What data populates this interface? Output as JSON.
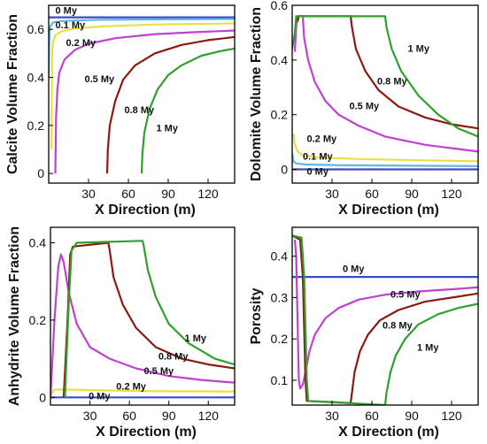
{
  "chart_data": [
    {
      "type": "line",
      "ylabel": "Calcite Volume Fraction",
      "xlabel": "X Direction (m)",
      "xlim": [
        0,
        140
      ],
      "ylim": [
        -0.04,
        0.7
      ],
      "xticks": [
        "30",
        "60",
        "90",
        "120"
      ],
      "xtick_values": [
        30,
        60,
        90,
        120
      ],
      "yticks": [
        "0",
        "0.2",
        "0.4",
        "0.6"
      ],
      "ytick_values": [
        0,
        0.2,
        0.4,
        0.6
      ],
      "series": [
        {
          "name": "0 My",
          "color": "#3b4cc0",
          "points": [
            [
              0,
              0.65
            ],
            [
              140,
              0.65
            ]
          ]
        },
        {
          "name": "0.1 My",
          "color": "#5fb7e8",
          "points": [
            [
              0,
              0.4
            ],
            [
              0.5,
              0.58
            ],
            [
              1,
              0.61
            ],
            [
              3,
              0.628
            ],
            [
              10,
              0.635
            ],
            [
              40,
              0.64
            ],
            [
              140,
              0.643
            ]
          ]
        },
        {
          "name": "0.2 My",
          "color": "#e8e040",
          "points": [
            [
              2,
              0.1
            ],
            [
              2.5,
              0.47
            ],
            [
              3,
              0.54
            ],
            [
              5,
              0.575
            ],
            [
              10,
              0.593
            ],
            [
              20,
              0.603
            ],
            [
              40,
              0.612
            ],
            [
              80,
              0.62
            ],
            [
              140,
              0.625
            ]
          ]
        },
        {
          "name": "0.5 My",
          "color": "#c040d0",
          "points": [
            [
              5,
              0.0
            ],
            [
              5.5,
              0.23
            ],
            [
              6.5,
              0.35
            ],
            [
              8,
              0.42
            ],
            [
              12,
              0.475
            ],
            [
              20,
              0.515
            ],
            [
              30,
              0.54
            ],
            [
              50,
              0.563
            ],
            [
              80,
              0.58
            ],
            [
              110,
              0.588
            ],
            [
              140,
              0.595
            ]
          ]
        },
        {
          "name": "0.8 My",
          "color": "#8b1a10",
          "points": [
            [
              44,
              0.0
            ],
            [
              44.5,
              0.1
            ],
            [
              46,
              0.2
            ],
            [
              50,
              0.3
            ],
            [
              56,
              0.39
            ],
            [
              65,
              0.45
            ],
            [
              80,
              0.5
            ],
            [
              100,
              0.535
            ],
            [
              120,
              0.555
            ],
            [
              140,
              0.568
            ]
          ]
        },
        {
          "name": "1 My",
          "color": "#2ea02e",
          "points": [
            [
              70,
              0.0
            ],
            [
              70.5,
              0.08
            ],
            [
              72,
              0.17
            ],
            [
              76,
              0.27
            ],
            [
              82,
              0.35
            ],
            [
              90,
              0.41
            ],
            [
              100,
              0.45
            ],
            [
              115,
              0.49
            ],
            [
              130,
              0.51
            ],
            [
              140,
              0.52
            ]
          ]
        }
      ],
      "annotations": [
        {
          "text": "0 My",
          "x": 5,
          "y": 0.665
        },
        {
          "text": "0.1 My",
          "x": 5,
          "y": 0.605
        },
        {
          "text": "0.2 My",
          "x": 13,
          "y": 0.53
        },
        {
          "text": "0.5 My",
          "x": 27,
          "y": 0.38
        },
        {
          "text": "0.8 My",
          "x": 57,
          "y": 0.25
        },
        {
          "text": "1 My",
          "x": 81,
          "y": 0.175
        }
      ]
    },
    {
      "type": "line",
      "ylabel": "Dolomite Volume Fraction",
      "xlabel": "X Direction (m)",
      "xlim": [
        0,
        140
      ],
      "ylim": [
        -0.05,
        0.6
      ],
      "xticks": [
        "30",
        "60",
        "90",
        "120"
      ],
      "xtick_values": [
        30,
        60,
        90,
        120
      ],
      "yticks": [
        "0",
        "0.2",
        "0.4",
        "0.6"
      ],
      "ytick_values": [
        0,
        0.2,
        0.4,
        0.6
      ],
      "series": [
        {
          "name": "0 My",
          "color": "#3b4cc0",
          "points": [
            [
              0,
              0
            ],
            [
              140,
              0
            ]
          ]
        },
        {
          "name": "0.1 My",
          "color": "#5fb7e8",
          "points": [
            [
              0,
              0.06
            ],
            [
              1,
              0.03
            ],
            [
              3,
              0.022
            ],
            [
              10,
              0.018
            ],
            [
              40,
              0.015
            ],
            [
              140,
              0.012
            ]
          ]
        },
        {
          "name": "0.2 My",
          "color": "#e8e040",
          "points": [
            [
              1,
              0.13
            ],
            [
              2,
              0.09
            ],
            [
              4,
              0.065
            ],
            [
              8,
              0.052
            ],
            [
              20,
              0.043
            ],
            [
              50,
              0.038
            ],
            [
              100,
              0.033
            ],
            [
              140,
              0.03
            ]
          ]
        },
        {
          "name": "0.5 My",
          "color": "#c040d0",
          "points": [
            [
              2,
              0.43
            ],
            [
              3,
              0.52
            ],
            [
              4,
              0.56
            ],
            [
              8,
              0.56
            ],
            [
              9,
              0.48
            ],
            [
              12,
              0.4
            ],
            [
              17,
              0.32
            ],
            [
              25,
              0.25
            ],
            [
              35,
              0.2
            ],
            [
              50,
              0.16
            ],
            [
              70,
              0.12
            ],
            [
              100,
              0.09
            ],
            [
              140,
              0.065
            ]
          ]
        },
        {
          "name": "0.8 My",
          "color": "#8b1a10",
          "points": [
            [
              4,
              0.54
            ],
            [
              5,
              0.56
            ],
            [
              44,
              0.56
            ],
            [
              45,
              0.52
            ],
            [
              48,
              0.44
            ],
            [
              55,
              0.36
            ],
            [
              65,
              0.29
            ],
            [
              80,
              0.23
            ],
            [
              100,
              0.19
            ],
            [
              120,
              0.165
            ],
            [
              140,
              0.15
            ]
          ]
        },
        {
          "name": "1 My",
          "color": "#2ea02e",
          "points": [
            [
              0,
              0.44
            ],
            [
              2,
              0.5
            ],
            [
              3,
              0.56
            ],
            [
              70,
              0.56
            ],
            [
              71,
              0.52
            ],
            [
              75,
              0.44
            ],
            [
              82,
              0.36
            ],
            [
              95,
              0.27
            ],
            [
              110,
              0.2
            ],
            [
              125,
              0.15
            ],
            [
              140,
              0.12
            ]
          ]
        }
      ],
      "annotations": [
        {
          "text": "1 My",
          "x": 87,
          "y": 0.43
        },
        {
          "text": "0.8 My",
          "x": 64,
          "y": 0.31
        },
        {
          "text": "0.5 My",
          "x": 43,
          "y": 0.22
        },
        {
          "text": "0.2 My",
          "x": 11,
          "y": 0.1
        },
        {
          "text": "0.1 My",
          "x": 8,
          "y": 0.035
        },
        {
          "text": "0 My",
          "x": 11,
          "y": -0.02
        }
      ]
    },
    {
      "type": "line",
      "ylabel": "Anhydrite Volume Fraction",
      "xlabel": "X Direction (m)",
      "xlim": [
        0,
        140
      ],
      "ylim": [
        -0.02,
        0.44
      ],
      "xticks": [
        "30",
        "60",
        "90",
        "120"
      ],
      "xtick_values": [
        30,
        60,
        90,
        120
      ],
      "yticks": [
        "0",
        "0.2",
        "0.4"
      ],
      "ytick_values": [
        0,
        0.2,
        0.4
      ],
      "series": [
        {
          "name": "0 My",
          "color": "#3b4cc0",
          "points": [
            [
              0,
              0
            ],
            [
              140,
              0
            ]
          ]
        },
        {
          "name": "0.2 My",
          "color": "#e8e040",
          "points": [
            [
              0,
              0.005
            ],
            [
              3,
              0.02
            ],
            [
              15,
              0.02
            ],
            [
              40,
              0.018
            ],
            [
              80,
              0.016
            ],
            [
              140,
              0.015
            ]
          ]
        },
        {
          "name": "0.5 My",
          "color": "#c040d0",
          "points": [
            [
              0,
              0
            ],
            [
              3,
              0.2
            ],
            [
              6,
              0.34
            ],
            [
              8,
              0.37
            ],
            [
              10,
              0.35
            ],
            [
              14,
              0.27
            ],
            [
              20,
              0.19
            ],
            [
              30,
              0.13
            ],
            [
              45,
              0.1
            ],
            [
              65,
              0.075
            ],
            [
              90,
              0.055
            ],
            [
              115,
              0.045
            ],
            [
              140,
              0.038
            ]
          ]
        },
        {
          "name": "0.8 My",
          "color": "#8b1a10",
          "points": [
            [
              10,
              0
            ],
            [
              13,
              0.2
            ],
            [
              15,
              0.37
            ],
            [
              17,
              0.39
            ],
            [
              44,
              0.4
            ],
            [
              45,
              0.38
            ],
            [
              48,
              0.31
            ],
            [
              55,
              0.24
            ],
            [
              65,
              0.18
            ],
            [
              80,
              0.13
            ],
            [
              100,
              0.1
            ],
            [
              120,
              0.085
            ],
            [
              140,
              0.075
            ]
          ]
        },
        {
          "name": "1 My",
          "color": "#2ea02e",
          "points": [
            [
              11,
              0
            ],
            [
              14,
              0.25
            ],
            [
              16,
              0.38
            ],
            [
              20,
              0.4
            ],
            [
              70,
              0.405
            ],
            [
              71,
              0.39
            ],
            [
              74,
              0.33
            ],
            [
              80,
              0.26
            ],
            [
              90,
              0.19
            ],
            [
              105,
              0.14
            ],
            [
              125,
              0.1
            ],
            [
              140,
              0.085
            ]
          ]
        }
      ],
      "annotations": [
        {
          "text": "1 My",
          "x": 102,
          "y": 0.145
        },
        {
          "text": "0.8 My",
          "x": 82,
          "y": 0.098
        },
        {
          "text": "0.5 My",
          "x": 71,
          "y": 0.06
        },
        {
          "text": "0.2 My",
          "x": 50,
          "y": 0.02
        },
        {
          "text": "0 My",
          "x": 29,
          "y": -0.005
        }
      ]
    },
    {
      "type": "line",
      "ylabel": "Porosity",
      "xlabel": "X Direction (m)",
      "xlim": [
        0,
        140
      ],
      "ylim": [
        0.04,
        0.47
      ],
      "xticks": [
        "30",
        "60",
        "90",
        "120"
      ],
      "xtick_values": [
        30,
        60,
        90,
        120
      ],
      "yticks": [
        "0.1",
        "0.2",
        "0.3",
        "0.4"
      ],
      "ytick_values": [
        0.1,
        0.2,
        0.3,
        0.4
      ],
      "series": [
        {
          "name": "0 My",
          "color": "#3b4cc0",
          "points": [
            [
              0,
              0.35
            ],
            [
              140,
              0.35
            ]
          ]
        },
        {
          "name": "0.5 My",
          "color": "#c040d0",
          "points": [
            [
              2,
              0.44
            ],
            [
              3,
              0.4
            ],
            [
              4,
              0.25
            ],
            [
              5,
              0.1
            ],
            [
              6,
              0.08
            ],
            [
              8,
              0.09
            ],
            [
              10,
              0.12
            ],
            [
              13,
              0.17
            ],
            [
              17,
              0.21
            ],
            [
              25,
              0.25
            ],
            [
              35,
              0.275
            ],
            [
              50,
              0.295
            ],
            [
              70,
              0.307
            ],
            [
              95,
              0.315
            ],
            [
              120,
              0.32
            ],
            [
              140,
              0.325
            ]
          ]
        },
        {
          "name": "0.8 My",
          "color": "#8b1a10",
          "points": [
            [
              0,
              0.45
            ],
            [
              6,
              0.44
            ],
            [
              8,
              0.35
            ],
            [
              10,
              0.1
            ],
            [
              11,
              0.05
            ],
            [
              44,
              0.045
            ],
            [
              45,
              0.07
            ],
            [
              47,
              0.12
            ],
            [
              51,
              0.17
            ],
            [
              57,
              0.21
            ],
            [
              66,
              0.245
            ],
            [
              80,
              0.27
            ],
            [
              100,
              0.29
            ],
            [
              120,
              0.3
            ],
            [
              140,
              0.31
            ]
          ]
        },
        {
          "name": "1 My",
          "color": "#2ea02e",
          "points": [
            [
              0,
              0.45
            ],
            [
              7,
              0.445
            ],
            [
              9,
              0.35
            ],
            [
              11,
              0.1
            ],
            [
              12,
              0.05
            ],
            [
              70,
              0.04
            ],
            [
              71,
              0.07
            ],
            [
              74,
              0.12
            ],
            [
              78,
              0.16
            ],
            [
              85,
              0.2
            ],
            [
              95,
              0.235
            ],
            [
              110,
              0.26
            ],
            [
              125,
              0.275
            ],
            [
              140,
              0.285
            ]
          ]
        }
      ],
      "annotations": [
        {
          "text": "0 My",
          "x": 38,
          "y": 0.362
        },
        {
          "text": "0.5 My",
          "x": 74,
          "y": 0.3
        },
        {
          "text": "0.8 My",
          "x": 68,
          "y": 0.225
        },
        {
          "text": "1 My",
          "x": 94,
          "y": 0.172
        }
      ]
    }
  ]
}
